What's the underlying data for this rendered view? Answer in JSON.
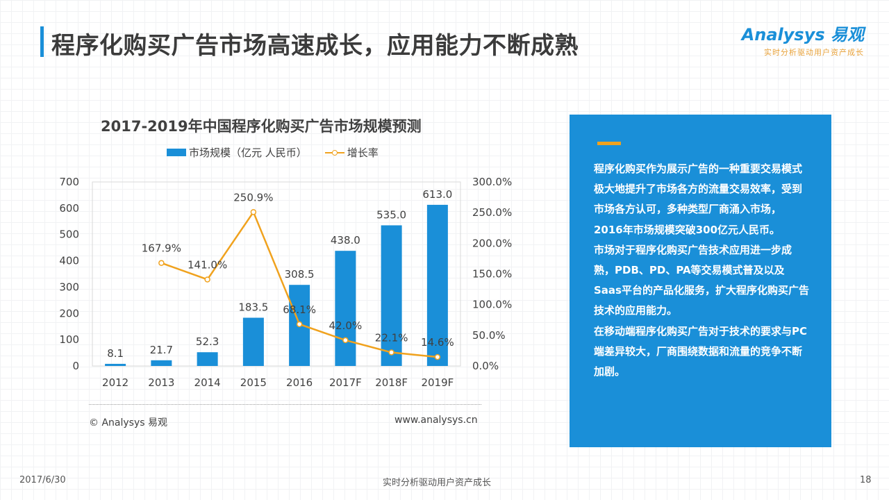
{
  "page": {
    "title": "程序化购买广告市场高速成长，应用能力不断成熟",
    "logo_main": "Analysys 易观",
    "logo_sub": "实时分析驱动用户资产成长"
  },
  "chart_data": {
    "type": "bar+line",
    "title": "2017-2019年中国程序化购买广告市场规模预测",
    "categories": [
      "2012",
      "2013",
      "2014",
      "2015",
      "2016",
      "2017F",
      "2018F",
      "2019F"
    ],
    "series": [
      {
        "name": "市场规模（亿元 人民币）",
        "type": "bar",
        "axis": "left",
        "values": [
          8.1,
          21.7,
          52.3,
          183.5,
          308.5,
          438.0,
          535.0,
          613.0
        ],
        "labels": [
          "8.1",
          "21.7",
          "52.3",
          "183.5",
          "308.5",
          "438.0",
          "535.0",
          "613.0"
        ]
      },
      {
        "name": "增长率",
        "type": "line",
        "axis": "right",
        "values": [
          null,
          167.9,
          141.0,
          250.9,
          68.1,
          42.0,
          22.1,
          14.6
        ],
        "labels": [
          "",
          "167.9%",
          "141.0%",
          "250.9%",
          "68.1%",
          "42.0%",
          "22.1%",
          "14.6%"
        ]
      }
    ],
    "ylim_left": [
      0,
      700
    ],
    "yticks_left": [
      "0",
      "100",
      "200",
      "300",
      "400",
      "500",
      "600",
      "700"
    ],
    "ylim_right": [
      0,
      300
    ],
    "yticks_right": [
      "0.0%",
      "50.0%",
      "100.0%",
      "150.0%",
      "200.0%",
      "250.0%",
      "300.0%"
    ],
    "legend_position": "top",
    "colors": {
      "bar": "#1a8fd8",
      "line": "#f0a21e"
    }
  },
  "source": {
    "copyright": "© Analysys 易观",
    "website": "www.analysys.cn"
  },
  "panel": {
    "paragraphs": [
      "程序化购买作为展示广告的一种重要交易模式极大地提升了市场各方的流量交易效率，受到市场各方认可，多种类型厂商涌入市场，2016年市场规模突破300亿元人民币。",
      "市场对于程序化购买广告技术应用进一步成熟，PDB、PD、PA等交易模式普及以及Saas平台的产品化服务，扩大程序化购买广告技术的应用能力。",
      "在移动端程序化购买广告对于技术的要求与PC端差异较大，厂商围绕数据和流量的竞争不断加剧。"
    ]
  },
  "footer": {
    "date": "2017/6/30",
    "tagline": "实时分析驱动用户资产成长",
    "page_number": "18"
  }
}
